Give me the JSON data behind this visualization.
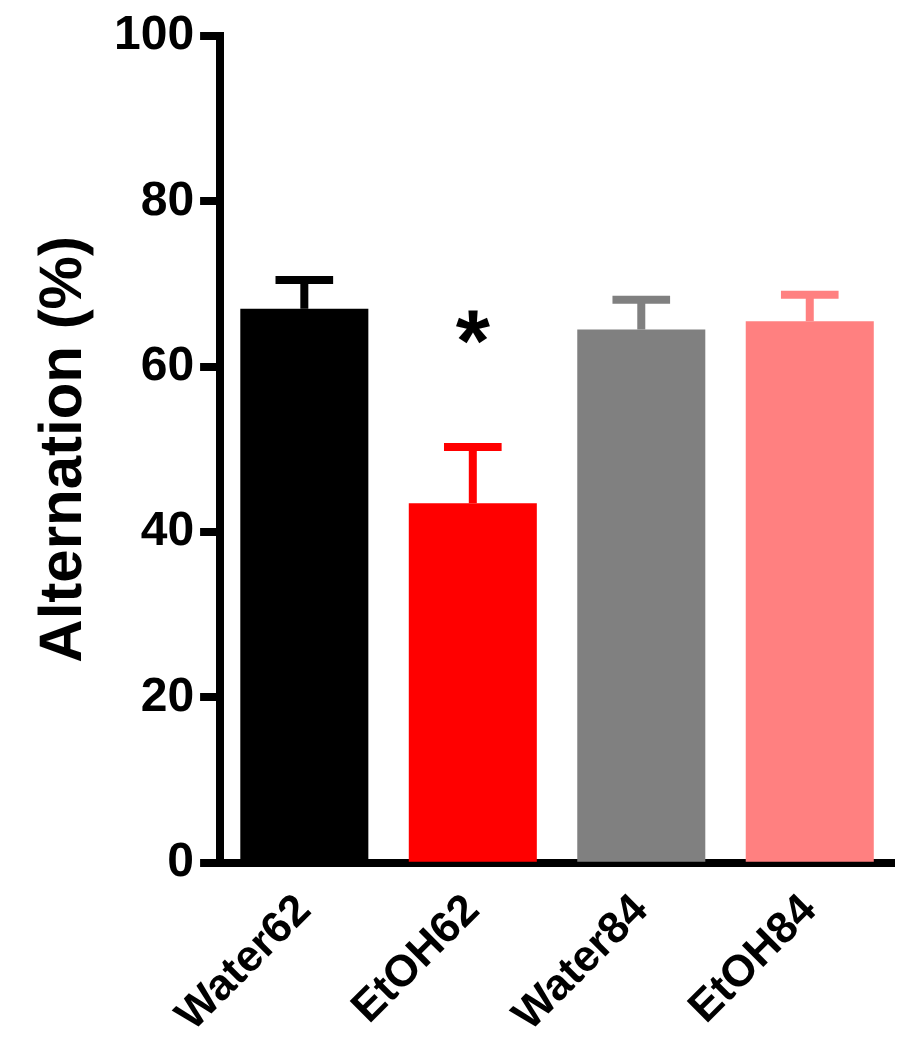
{
  "chart_data": {
    "type": "bar",
    "ylabel": "Alternation (%)",
    "categories": [
      "Water62",
      "EtOH62",
      "Water84",
      "EtOH84"
    ],
    "values": [
      67,
      43.5,
      64.5,
      65.5
    ],
    "colors": [
      "#000000",
      "#ff0000",
      "#808080",
      "#ff8080"
    ],
    "errors": [
      [
        67,
        70.5
      ],
      [
        43.5,
        50.3
      ],
      [
        64.5,
        68.1
      ],
      [
        65.5,
        68.7
      ]
    ],
    "ylim": [
      0,
      100
    ],
    "yticks": [
      0,
      20,
      40,
      60,
      80,
      100
    ],
    "grid": false,
    "legend": false,
    "annotations": [
      "*"
    ]
  }
}
